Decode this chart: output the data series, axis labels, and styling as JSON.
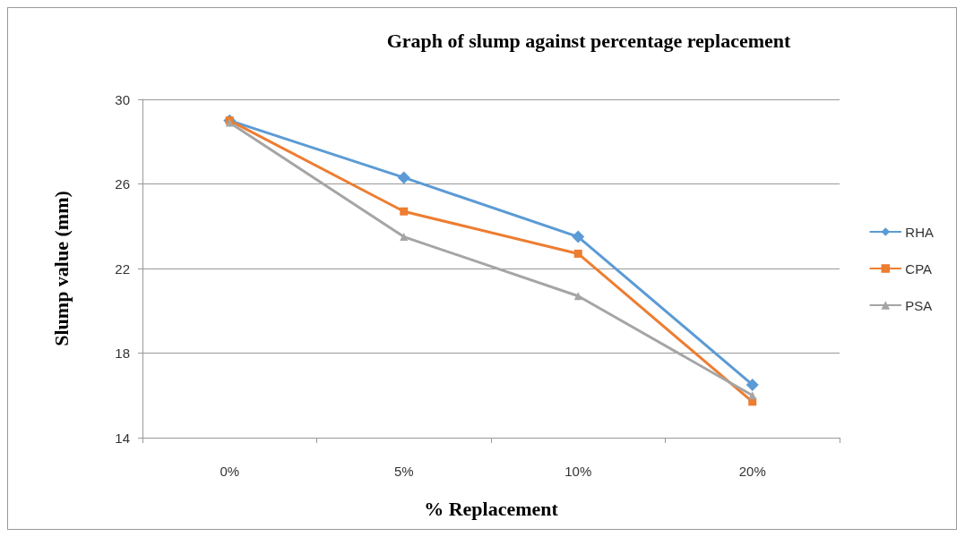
{
  "chart_data": {
    "type": "line",
    "title": "Graph of slump against percentage replacement",
    "xlabel": "% Replacement",
    "ylabel": "Slump value (mm)",
    "categories": [
      "0%",
      "5%",
      "10%",
      "20%"
    ],
    "series": [
      {
        "name": "RHA",
        "color": "#5b9bd5",
        "marker": "diamond",
        "values": [
          29,
          26.3,
          23.5,
          16.5
        ]
      },
      {
        "name": "CPA",
        "color": "#ed7d31",
        "marker": "square",
        "values": [
          29,
          24.7,
          22.7,
          15.7
        ]
      },
      {
        "name": "PSA",
        "color": "#a5a5a5",
        "marker": "triangle",
        "values": [
          28.9,
          23.5,
          20.7,
          16
        ]
      }
    ],
    "ylim": [
      14,
      30
    ],
    "yticks": [
      14,
      18,
      22,
      26,
      30
    ],
    "grid": "y",
    "legend": "right",
    "line_style": "solid"
  }
}
